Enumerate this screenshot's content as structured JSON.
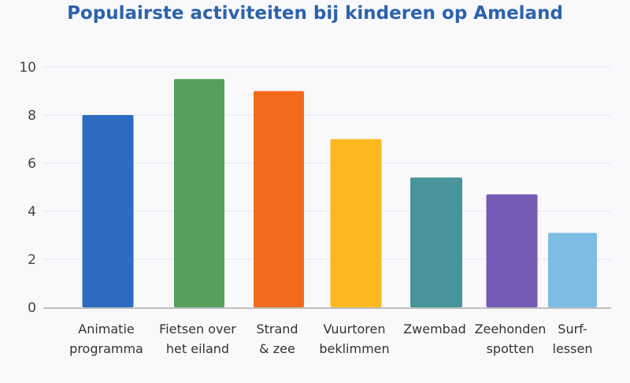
{
  "chart_data": {
    "type": "bar",
    "title": "Populairste activiteiten bij kinderen op Ameland",
    "xlabel": "",
    "ylabel": "",
    "ylim": [
      0,
      10
    ],
    "yticks": [
      "0",
      "2",
      "4",
      "6",
      "8",
      "10"
    ],
    "grid": true,
    "categories": [
      [
        "Animatie",
        "programma"
      ],
      [
        "Fietsen over",
        "het eiland"
      ],
      [
        "Strand",
        "& zee"
      ],
      [
        "Vuurtoren",
        "beklimmen"
      ],
      [
        "Zwembad"
      ],
      [
        "Zeehonden",
        "spotten"
      ],
      [
        "Surf-",
        "lessen"
      ]
    ],
    "values": [
      8.0,
      9.5,
      9.0,
      7.0,
      5.4,
      4.7,
      3.1
    ],
    "colors": [
      "#2d6cc0",
      "#55a05a",
      "#f26b1d",
      "#fbb91f",
      "#47949a",
      "#7459b5",
      "#7dbde3"
    ]
  }
}
